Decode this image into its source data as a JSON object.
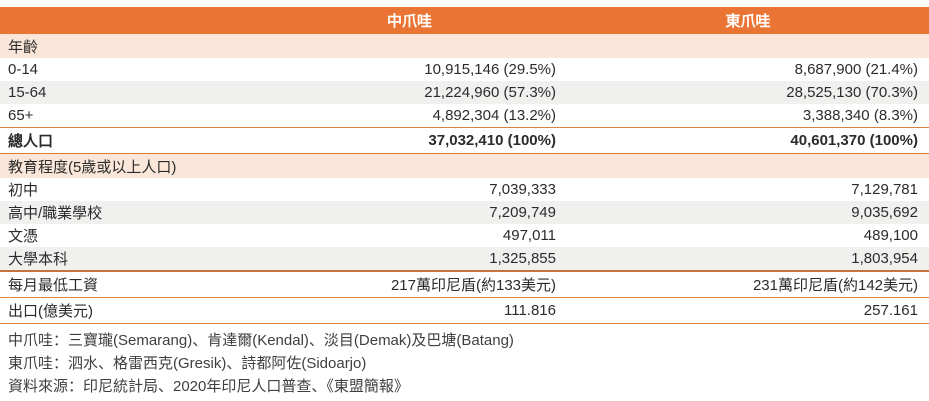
{
  "chart_data": {
    "type": "table",
    "columns": [
      "中爪哇",
      "東爪哇"
    ],
    "sections": [
      {
        "title": "年齡",
        "rows": [
          {
            "label": "0-14",
            "values": [
              "10,915,146 (29.5%)",
              "8,687,900 (21.4%)"
            ]
          },
          {
            "label": "15-64",
            "values": [
              "21,224,960 (57.3%)",
              "28,525,130 (70.3%)"
            ]
          },
          {
            "label": "65+",
            "values": [
              "4,892,304 (13.2%)",
              "3,388,340 (8.3%)"
            ]
          },
          {
            "label": "總人口",
            "values": [
              "37,032,410 (100%)",
              "40,601,370 (100%)"
            ],
            "emphasis": true
          }
        ]
      },
      {
        "title": "教育程度(5歲或以上人口)",
        "rows": [
          {
            "label": "初中",
            "values": [
              "7,039,333",
              "7,129,781"
            ]
          },
          {
            "label": "高中/職業學校",
            "values": [
              "7,209,749",
              "9,035,692"
            ]
          },
          {
            "label": "文憑",
            "values": [
              "497,011",
              "489,100"
            ]
          },
          {
            "label": "大學本科",
            "values": [
              "1,325,855",
              "1,803,954"
            ]
          }
        ]
      }
    ],
    "extra_rows": [
      {
        "label": "每月最低工資",
        "values": [
          "217萬印尼盾(約133美元)",
          "231萬印尼盾(約142美元)"
        ]
      },
      {
        "label": "出口(億美元)",
        "values": [
          "111.816",
          "257.161"
        ]
      }
    ],
    "footnotes": [
      "中爪哇：三寶瓏(Semarang)、肯達爾(Kendal)、淡目(Demak)及巴塘(Batang)",
      "東爪哇：泗水、格雷西克(Gresik)、詩都阿佐(Sidoarjo)",
      "資料來源：印尼統計局、2020年印尼人口普查、《東盟簡報》"
    ],
    "colors": {
      "header_bg": "#E97434",
      "header_text": "#FFFFFF",
      "section_bg": "#FAE7D9",
      "alt_row_bg": "#F0F0EF",
      "rule_orange": "#D9813D",
      "rule_thick": "#C0763C",
      "body_text": "#2B2B2B",
      "footnote_text": "#3F3F3F"
    }
  }
}
